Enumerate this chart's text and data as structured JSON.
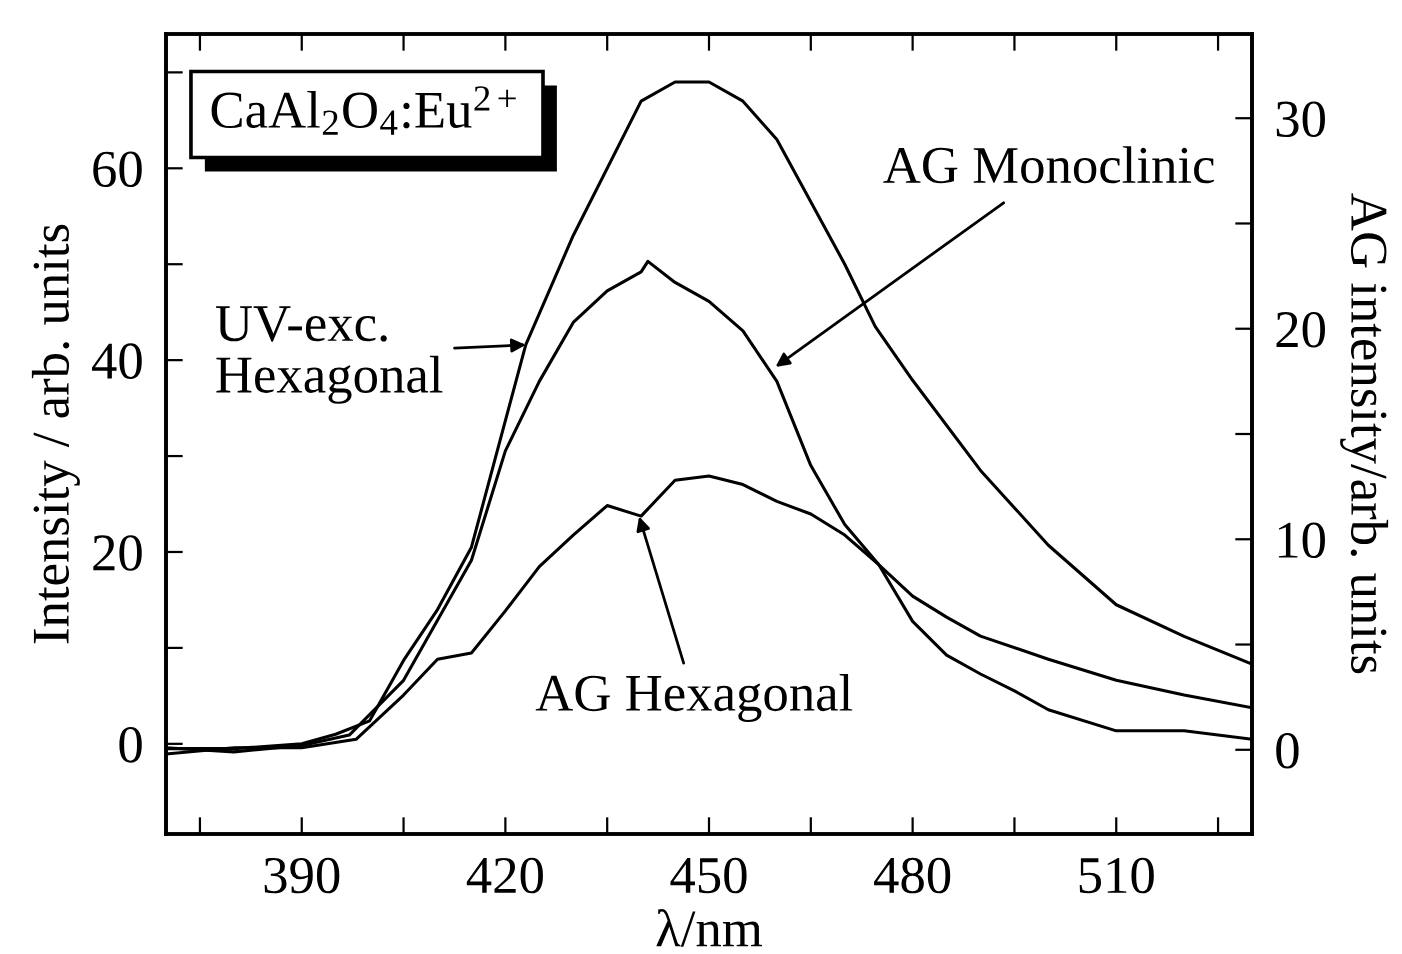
{
  "chart_data": {
    "type": "line",
    "xlabel": "λ/nm",
    "ylabel": "Intensity / arb. units",
    "y2label": "AG intensity/arb. units",
    "xlim": [
      370,
      530
    ],
    "xticks": [
      {
        "value": 375,
        "label": null
      },
      390,
      {
        "value": 405,
        "label": null
      },
      420,
      {
        "value": 435,
        "label": null
      },
      450,
      {
        "value": 465,
        "label": null
      },
      480,
      {
        "value": 495,
        "label": null
      },
      510,
      {
        "value": 525,
        "label": null
      }
    ],
    "ylim": [
      -9.4,
      74
    ],
    "yticks": [
      0,
      {
        "value": 10,
        "label": null
      },
      20,
      {
        "value": 30,
        "label": null
      },
      40,
      {
        "value": 50,
        "label": null
      },
      60,
      {
        "value": 70,
        "label": null
      }
    ],
    "y2lim": [
      -4,
      34
    ],
    "y2ticks": [
      0,
      {
        "value": 5,
        "label": null
      },
      10,
      {
        "value": 15,
        "label": null
      },
      20,
      {
        "value": 25,
        "label": null
      },
      30
    ],
    "grid": false,
    "legend": false,
    "marker": "none",
    "line_style": "solid",
    "series": [
      {
        "color": "#000000",
        "x": [
          370,
          380,
          390,
          395,
          400,
          405,
          410,
          415,
          423,
          430,
          440,
          445,
          450,
          455,
          460,
          470,
          474.5,
          480,
          490,
          500,
          510,
          520,
          530
        ],
        "values": [
          -0.5,
          -0.5,
          0,
          1,
          2.4,
          8.7,
          14,
          20.5,
          41.6,
          53,
          67,
          69,
          69,
          67,
          63,
          50,
          43.5,
          37.9,
          28.5,
          20.7,
          14.5,
          11.2,
          8.3
        ]
      },
      {
        "color": "#000000",
        "axis": "y2",
        "x": [
          370,
          380,
          390,
          397,
          405,
          415,
          420,
          425,
          430,
          435,
          440,
          441,
          445,
          450,
          455,
          460,
          465,
          470,
          475,
          480,
          485,
          490,
          495,
          500,
          510,
          520,
          530
        ],
        "values": [
          0.1,
          -0.1,
          0.2,
          0.7,
          3.3,
          9,
          14.2,
          17.5,
          20.3,
          21.8,
          22.7,
          23.2,
          22.2,
          21.3,
          19.9,
          17.5,
          13.5,
          10.7,
          8.8,
          6.1,
          4.5,
          3.6,
          2.8,
          1.9,
          0.9,
          0.9,
          0.5
        ]
      },
      {
        "color": "#000000",
        "axis": "y2",
        "x": [
          370,
          380,
          390,
          398,
          405,
          410,
          415,
          420,
          425,
          430,
          435,
          440,
          445,
          450,
          455,
          460,
          465,
          470,
          475,
          480,
          485,
          490,
          500,
          510,
          520,
          530
        ],
        "values": [
          -0.2,
          0.1,
          0.1,
          0.5,
          2.6,
          4.3,
          4.6,
          6.6,
          8.7,
          10.2,
          11.6,
          11.1,
          12.8,
          13,
          12.6,
          11.8,
          11.2,
          10.2,
          8.8,
          7.3,
          6.3,
          5.4,
          4.3,
          3.3,
          2.6,
          2.0
        ]
      }
    ],
    "annotations": [
      "CaAl$_{2}$O$_{4}$:Eu$^{2+}$",
      {
        "text": "UV-exc.\nHexagonal",
        "x": 423,
        "y": 41.6
      },
      {
        "text": "AG Monoclinic",
        "x": 459.8,
        "y": 39.3
      },
      {
        "text": "AG Hexagonal",
        "x": 439.7,
        "y": 23.7
      }
    ]
  }
}
